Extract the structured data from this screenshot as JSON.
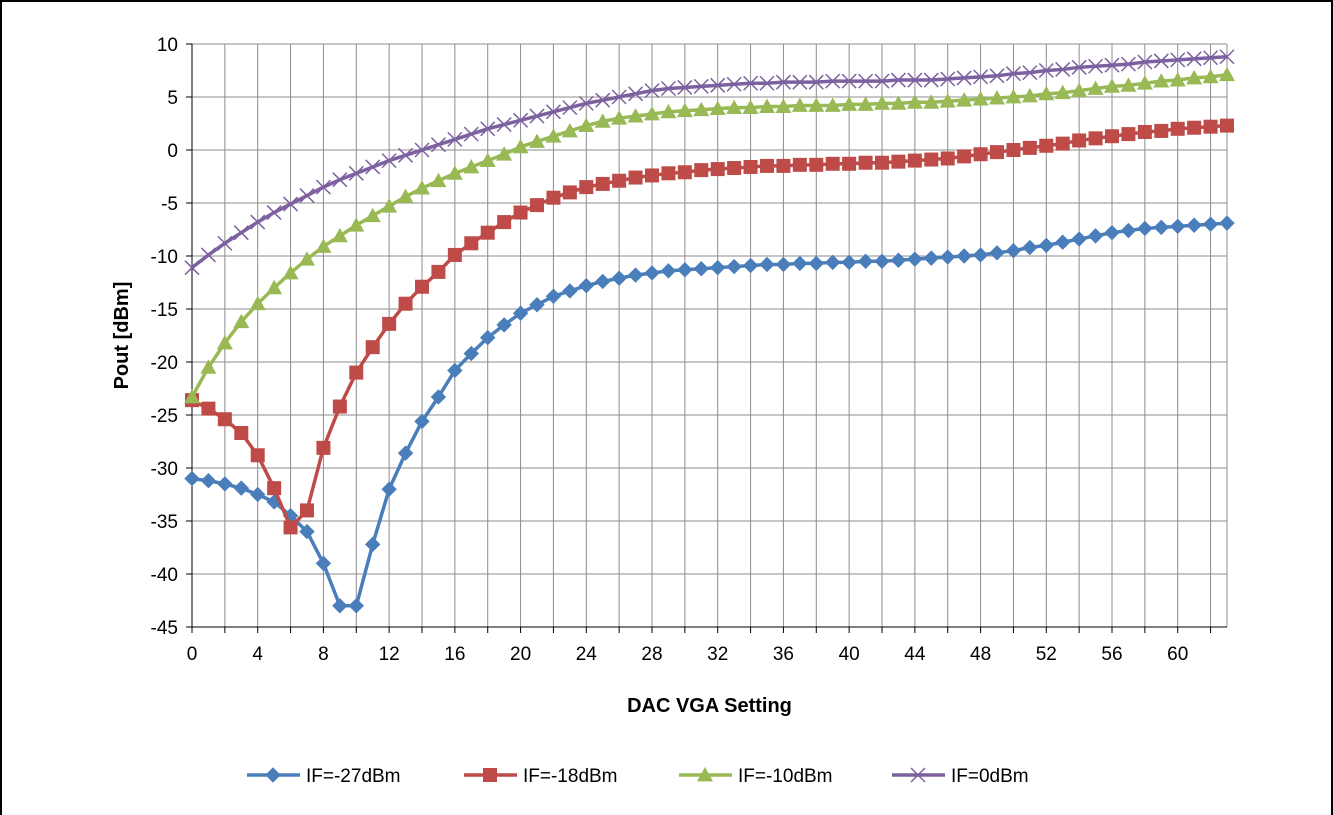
{
  "chart_data": {
    "type": "line",
    "title": "",
    "xlabel": "DAC VGA Setting",
    "ylabel": "Pout [dBm]",
    "xlim": [
      0,
      63
    ],
    "ylim": [
      -45,
      10
    ],
    "x_ticks": [
      0,
      4,
      8,
      12,
      16,
      20,
      24,
      28,
      32,
      36,
      40,
      44,
      48,
      52,
      56,
      60
    ],
    "y_ticks": [
      10,
      5,
      0,
      -5,
      -10,
      -15,
      -20,
      -25,
      -30,
      -35,
      -40,
      -45
    ],
    "grid": true,
    "legend_position": "bottom",
    "series": [
      {
        "name": "IF=-27dBm",
        "color": "#4a7ebb",
        "marker": "diamond",
        "y": [
          -31,
          -31.2,
          -31.5,
          -31.9,
          -32.5,
          -33.2,
          -34.5,
          -36,
          -39,
          -43,
          -43,
          -37.2,
          -32,
          -28.6,
          -25.6,
          -23.3,
          -20.8,
          -19.2,
          -17.7,
          -16.5,
          -15.4,
          -14.6,
          -13.8,
          -13.3,
          -12.8,
          -12.4,
          -12.1,
          -11.8,
          -11.6,
          -11.4,
          -11.3,
          -11.2,
          -11.1,
          -11,
          -10.9,
          -10.8,
          -10.8,
          -10.7,
          -10.7,
          -10.6,
          -10.6,
          -10.5,
          -10.5,
          -10.4,
          -10.3,
          -10.2,
          -10.1,
          -10,
          -9.9,
          -9.7,
          -9.5,
          -9.2,
          -9,
          -8.7,
          -8.4,
          -8.1,
          -7.8,
          -7.6,
          -7.4,
          -7.3,
          -7.2,
          -7.1,
          -7,
          -6.9
        ]
      },
      {
        "name": "IF=-18dBm",
        "color": "#be4b48",
        "marker": "square",
        "y": [
          -23.6,
          -24.4,
          -25.4,
          -26.7,
          -28.8,
          -31.9,
          -35.6,
          -34,
          -28.1,
          -24.2,
          -21,
          -18.6,
          -16.4,
          -14.5,
          -12.9,
          -11.5,
          -9.9,
          -8.8,
          -7.8,
          -6.8,
          -5.9,
          -5.2,
          -4.5,
          -4,
          -3.5,
          -3.2,
          -2.9,
          -2.6,
          -2.4,
          -2.2,
          -2.1,
          -1.9,
          -1.8,
          -1.7,
          -1.6,
          -1.5,
          -1.5,
          -1.4,
          -1.4,
          -1.3,
          -1.3,
          -1.2,
          -1.2,
          -1.1,
          -1,
          -0.9,
          -0.8,
          -0.6,
          -0.4,
          -0.2,
          0,
          0.2,
          0.4,
          0.6,
          0.9,
          1.1,
          1.3,
          1.5,
          1.7,
          1.8,
          2,
          2.1,
          2.2,
          2.3
        ]
      },
      {
        "name": "IF=-10dBm",
        "color": "#98b954",
        "marker": "triangle",
        "y": [
          -23.3,
          -20.5,
          -18.2,
          -16.2,
          -14.5,
          -13,
          -11.6,
          -10.3,
          -9.1,
          -8.1,
          -7.1,
          -6.2,
          -5.3,
          -4.4,
          -3.6,
          -2.9,
          -2.2,
          -1.6,
          -1,
          -0.4,
          0.3,
          0.8,
          1.3,
          1.8,
          2.3,
          2.7,
          3,
          3.2,
          3.4,
          3.6,
          3.7,
          3.8,
          3.9,
          4,
          4,
          4.1,
          4.1,
          4.2,
          4.2,
          4.2,
          4.3,
          4.3,
          4.4,
          4.4,
          4.5,
          4.5,
          4.6,
          4.7,
          4.8,
          4.9,
          5,
          5.1,
          5.3,
          5.4,
          5.6,
          5.8,
          6,
          6.1,
          6.3,
          6.5,
          6.6,
          6.8,
          6.9,
          7.1
        ]
      },
      {
        "name": "IF=0dBm",
        "color": "#7d60a0",
        "marker": "x",
        "y": [
          -11.1,
          -9.9,
          -8.8,
          -7.8,
          -6.8,
          -5.9,
          -5.1,
          -4.3,
          -3.5,
          -2.8,
          -2.2,
          -1.6,
          -1,
          -0.5,
          0,
          0.5,
          1,
          1.5,
          2,
          2.4,
          2.8,
          3.2,
          3.6,
          4,
          4.4,
          4.7,
          5,
          5.3,
          5.6,
          5.8,
          5.9,
          6,
          6.1,
          6.2,
          6.3,
          6.3,
          6.4,
          6.4,
          6.4,
          6.5,
          6.5,
          6.5,
          6.5,
          6.6,
          6.6,
          6.6,
          6.7,
          6.8,
          6.9,
          7,
          7.2,
          7.3,
          7.5,
          7.6,
          7.8,
          7.9,
          8,
          8.1,
          8.3,
          8.4,
          8.5,
          8.6,
          8.7,
          8.8
        ]
      }
    ]
  }
}
